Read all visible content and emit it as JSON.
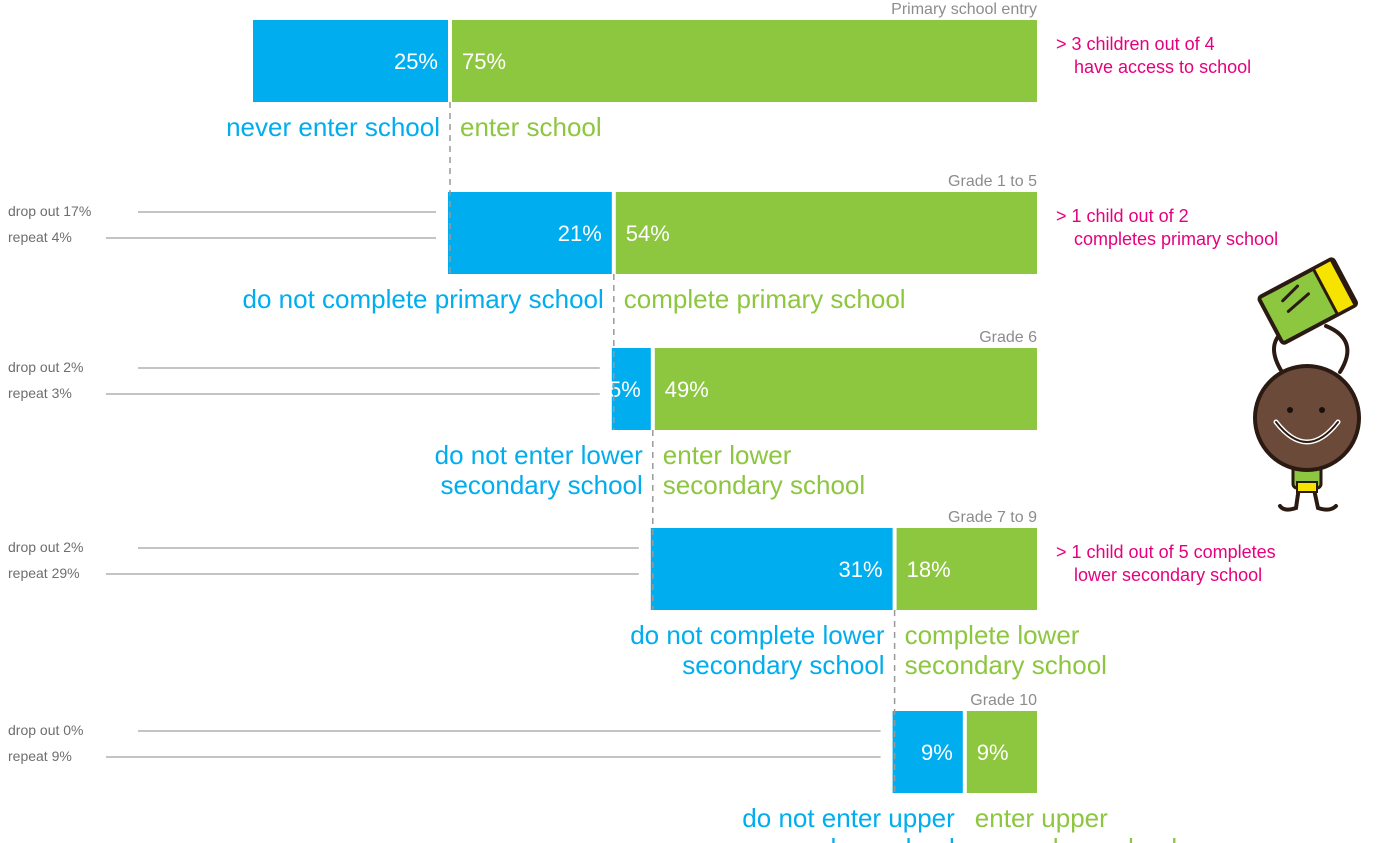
{
  "colors": {
    "blue": "#00adef",
    "green": "#8dc63f",
    "pink": "#e6007e",
    "grey_text": "#8c8c8c",
    "side_text": "#6e6e6e",
    "rule": "#8a8a8a"
  },
  "chart_data": {
    "type": "bar",
    "orientation": "horizontal",
    "stacked": true,
    "scale_max": 100,
    "stages": [
      {
        "name": "Primary school entry",
        "blue": {
          "value": 25,
          "label": "25%",
          "caption": [
            "never enter school"
          ]
        },
        "green": {
          "value": 75,
          "label": "75%",
          "caption": [
            "enter school"
          ]
        },
        "side": [],
        "note": [
          "> 3 children out of 4",
          "have access to school"
        ]
      },
      {
        "name": "Grade 1 to 5",
        "blue": {
          "value": 21,
          "label": "21%",
          "caption": [
            "do not complete primary school"
          ]
        },
        "green": {
          "value": 54,
          "label": "54%",
          "caption": [
            "complete primary school"
          ]
        },
        "side": [
          "drop out 17%",
          "repeat 4%"
        ],
        "note": [
          "> 1 child out of 2",
          "completes primary school"
        ]
      },
      {
        "name": "Grade 6",
        "blue": {
          "value": 5,
          "label": "5%",
          "caption": [
            "do not enter lower",
            "secondary school"
          ]
        },
        "green": {
          "value": 49,
          "label": "49%",
          "caption": [
            "enter lower",
            "secondary school"
          ]
        },
        "side": [
          "drop out 2%",
          "repeat 3%"
        ],
        "note": []
      },
      {
        "name": "Grade 7 to 9",
        "blue": {
          "value": 31,
          "label": "31%",
          "caption": [
            "do not complete lower",
            "secondary school"
          ]
        },
        "green": {
          "value": 18,
          "label": "18%",
          "caption": [
            "complete lower",
            "secondary school"
          ]
        },
        "side": [
          "drop out 2%",
          "repeat 29%"
        ],
        "note": [
          "> 1 child out of 5 completes",
          "lower secondary school"
        ]
      },
      {
        "name": "Grade 10",
        "blue": {
          "value": 9,
          "label": "9%",
          "caption": [
            "do not enter upper",
            "secondary school"
          ]
        },
        "green": {
          "value": 9,
          "label": "9%",
          "caption": [
            "enter upper",
            "secondary school"
          ]
        },
        "side": [
          "drop out 0%",
          "repeat 9%"
        ],
        "note": []
      }
    ]
  },
  "illustration": {
    "icon": "child-with-book-icon"
  }
}
